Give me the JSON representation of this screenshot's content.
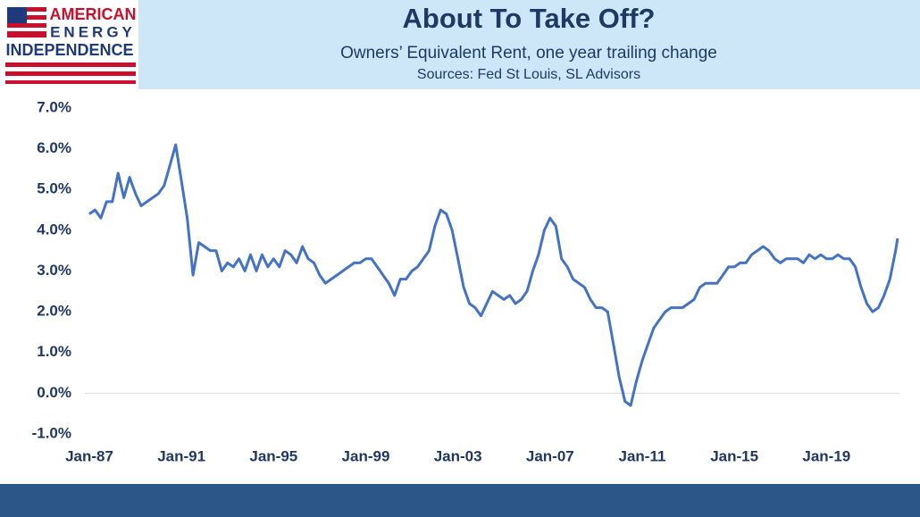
{
  "logo": [
    "AMERICAN",
    "ENERGY",
    "INDEPENDENCE"
  ],
  "chart_data": {
    "type": "line",
    "title": "About To Take Off?",
    "subtitle": "Owners’ Equivalent Rent, one year trailing change",
    "source": "Sources: Fed St Louis, SL Advisors",
    "color": "#4472c4",
    "zero_line": true,
    "x": [
      "1987-01",
      "1987-04",
      "1987-07",
      "1987-10",
      "1988-01",
      "1988-04",
      "1988-07",
      "1988-10",
      "1989-01",
      "1989-04",
      "1989-07",
      "1989-10",
      "1990-01",
      "1990-04",
      "1990-07",
      "1990-10",
      "1991-01",
      "1991-04",
      "1991-07",
      "1991-10",
      "1992-01",
      "1992-04",
      "1992-07",
      "1992-10",
      "1993-01",
      "1993-04",
      "1993-07",
      "1993-10",
      "1994-01",
      "1994-04",
      "1994-07",
      "1994-10",
      "1995-01",
      "1995-04",
      "1995-07",
      "1995-10",
      "1996-01",
      "1996-04",
      "1996-07",
      "1996-10",
      "1997-01",
      "1997-04",
      "1997-07",
      "1997-10",
      "1998-01",
      "1998-04",
      "1998-07",
      "1998-10",
      "1999-01",
      "1999-04",
      "1999-07",
      "1999-10",
      "2000-01",
      "2000-04",
      "2000-07",
      "2000-10",
      "2001-01",
      "2001-04",
      "2001-07",
      "2001-10",
      "2002-01",
      "2002-04",
      "2002-07",
      "2002-10",
      "2003-01",
      "2003-04",
      "2003-07",
      "2003-10",
      "2004-01",
      "2004-04",
      "2004-07",
      "2004-10",
      "2005-01",
      "2005-04",
      "2005-07",
      "2005-10",
      "2006-01",
      "2006-04",
      "2006-07",
      "2006-10",
      "2007-01",
      "2007-04",
      "2007-07",
      "2007-10",
      "2008-01",
      "2008-04",
      "2008-07",
      "2008-10",
      "2009-01",
      "2009-04",
      "2009-07",
      "2009-10",
      "2010-01",
      "2010-04",
      "2010-07",
      "2010-10",
      "2011-01",
      "2011-04",
      "2011-07",
      "2011-10",
      "2012-01",
      "2012-04",
      "2012-07",
      "2012-10",
      "2013-01",
      "2013-04",
      "2013-07",
      "2013-10",
      "2014-01",
      "2014-04",
      "2014-07",
      "2014-10",
      "2015-01",
      "2015-04",
      "2015-07",
      "2015-10",
      "2016-01",
      "2016-04",
      "2016-07",
      "2016-10",
      "2017-01",
      "2017-04",
      "2017-07",
      "2017-10",
      "2018-01",
      "2018-04",
      "2018-07",
      "2018-10",
      "2019-01",
      "2019-04",
      "2019-07",
      "2019-10",
      "2020-01",
      "2020-04",
      "2020-07",
      "2020-10",
      "2021-01",
      "2021-04",
      "2021-07",
      "2021-10",
      "2022-01",
      "2022-02"
    ],
    "values": [
      4.4,
      4.5,
      4.3,
      4.7,
      4.7,
      5.4,
      4.8,
      5.3,
      4.9,
      4.6,
      4.7,
      4.8,
      4.9,
      5.1,
      5.6,
      6.1,
      5.2,
      4.3,
      2.9,
      3.7,
      3.6,
      3.5,
      3.5,
      3.0,
      3.2,
      3.1,
      3.3,
      3.0,
      3.4,
      3.0,
      3.4,
      3.1,
      3.3,
      3.1,
      3.5,
      3.4,
      3.2,
      3.6,
      3.3,
      3.2,
      2.9,
      2.7,
      2.8,
      2.9,
      3.0,
      3.1,
      3.2,
      3.2,
      3.3,
      3.3,
      3.1,
      2.9,
      2.7,
      2.4,
      2.8,
      2.8,
      3.0,
      3.1,
      3.3,
      3.5,
      4.1,
      4.5,
      4.4,
      4.0,
      3.3,
      2.6,
      2.2,
      2.1,
      1.9,
      2.2,
      2.5,
      2.4,
      2.3,
      2.4,
      2.2,
      2.3,
      2.5,
      3.0,
      3.4,
      4.0,
      4.3,
      4.1,
      3.3,
      3.1,
      2.8,
      2.7,
      2.6,
      2.3,
      2.1,
      2.1,
      2.0,
      1.2,
      0.4,
      -0.2,
      -0.3,
      0.3,
      0.8,
      1.2,
      1.6,
      1.8,
      2.0,
      2.1,
      2.1,
      2.1,
      2.2,
      2.3,
      2.6,
      2.7,
      2.7,
      2.7,
      2.9,
      3.1,
      3.1,
      3.2,
      3.2,
      3.4,
      3.5,
      3.6,
      3.5,
      3.3,
      3.2,
      3.3,
      3.3,
      3.3,
      3.2,
      3.4,
      3.3,
      3.4,
      3.3,
      3.3,
      3.4,
      3.3,
      3.3,
      3.1,
      2.6,
      2.2,
      2.0,
      2.1,
      2.4,
      2.8,
      3.5,
      3.8
    ],
    "xlim": [
      "1987-01",
      "2022-03"
    ],
    "xticks": [
      {
        "value": "1987-01",
        "label": "Jan-87"
      },
      {
        "value": "1991-01",
        "label": "Jan-91"
      },
      {
        "value": "1995-01",
        "label": "Jan-95"
      },
      {
        "value": "1999-01",
        "label": "Jan-99"
      },
      {
        "value": "2003-01",
        "label": "Jan-03"
      },
      {
        "value": "2007-01",
        "label": "Jan-07"
      },
      {
        "value": "2011-01",
        "label": "Jan-11"
      },
      {
        "value": "2015-01",
        "label": "Jan-15"
      },
      {
        "value": "2019-01",
        "label": "Jan-19"
      }
    ],
    "ylim": [
      -1,
      7
    ],
    "yticks": [
      {
        "value": -1,
        "label": "-1.0%"
      },
      {
        "value": 0,
        "label": "0.0%"
      },
      {
        "value": 1,
        "label": "1.0%"
      },
      {
        "value": 2,
        "label": "2.0%"
      },
      {
        "value": 3,
        "label": "3.0%"
      },
      {
        "value": 4,
        "label": "4.0%"
      },
      {
        "value": 5,
        "label": "5.0%"
      },
      {
        "value": 6,
        "label": "6.0%"
      },
      {
        "value": 7,
        "label": "7.0%"
      }
    ]
  }
}
